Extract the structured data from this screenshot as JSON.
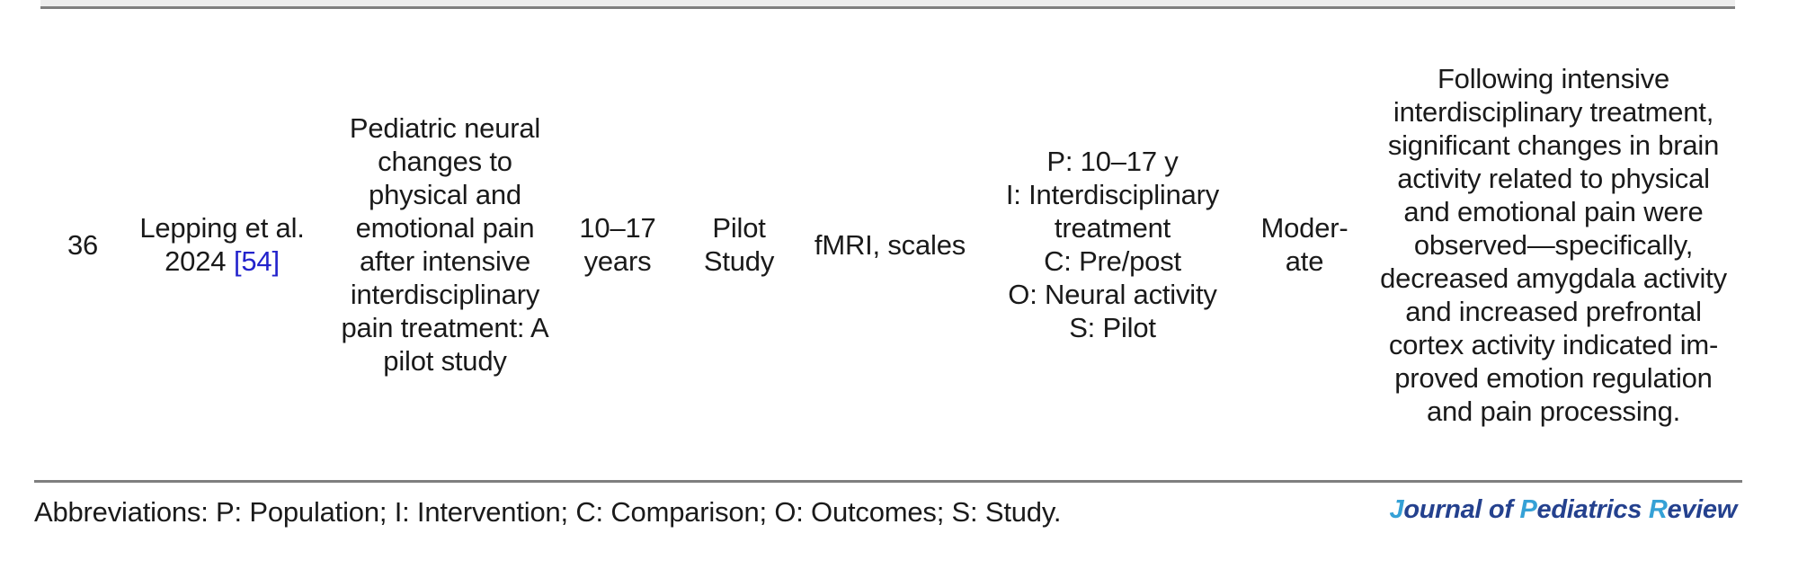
{
  "row": {
    "id": "36",
    "study": {
      "authors": "Lepping et al.",
      "year": "2024",
      "citation": "[54]"
    },
    "title": "Pediatric neural\nchanges to\nphysical and\nemotional pain\nafter intensive\ninterdisciplinary\npain treatment: A\npilot study",
    "age_range": "10–17\nyears",
    "study_design": "Pilot\nStudy",
    "assessment_tools": "fMRI, scales",
    "picos": "P: 10–17 y\nI: Interdisciplinary\ntreatment\nC: Pre/post\nO: Neural activity\nS: Pilot",
    "quality_rating": "Moder-\nate",
    "findings": "Following intensive\ninterdisciplinary treatment,\nsignificant changes in brain\nactivity related to physical\nand emotional pain were\nobserved—specifically,\ndecreased amygdala activity\nand increased prefrontal\ncortex activity indicated im-\nproved emotion regulation\nand pain processing."
  },
  "footer": {
    "abbreviations": "Abbreviations: P: Population; I: Intervention; C: Comparison; O: Outcomes; S: Study.",
    "journal_name": {
      "full": "Journal of Pediatrics Review",
      "parts": [
        {
          "t": "J"
        },
        {
          "t": "ournal of "
        },
        {
          "t": "P"
        },
        {
          "t": "ediatrics "
        },
        {
          "t": "R"
        },
        {
          "t": "eview"
        }
      ]
    }
  },
  "colors": {
    "text": "#1a1a1a",
    "citation_link_blue": "#2323cc",
    "journal_accent_blue": "#35a1d6",
    "journal_navy": "#24418e",
    "rule_gray": "#7f7f7f",
    "top_band_gray": "#ededed"
  }
}
